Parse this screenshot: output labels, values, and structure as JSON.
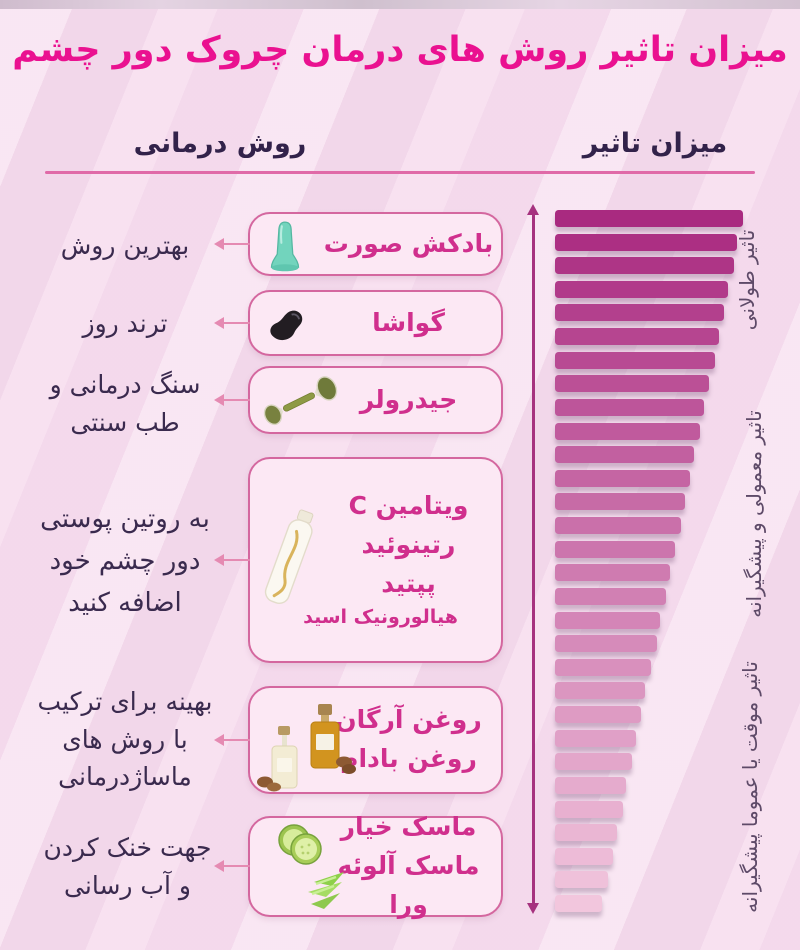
{
  "title": "میزان تاثیر روش های درمان چروک دور چشم",
  "headers": {
    "method": "روش درمانی",
    "effect": "میزان تاثیر"
  },
  "methods": [
    {
      "lines": [
        "بادکش صورت"
      ],
      "note_lines": [
        "بهترین روش"
      ],
      "icon": "face-cupping-icon"
    },
    {
      "lines": [
        "گواشا"
      ],
      "note_lines": [
        "ترند روز"
      ],
      "icon": "gua-sha-stone-icon"
    },
    {
      "lines": [
        "جیدرولر"
      ],
      "note_lines": [
        "سنگ درمانی و",
        "طب سنتی"
      ],
      "icon": "jade-roller-icon"
    },
    {
      "lines": [
        "ویتامین C",
        "رتینوئید",
        "پپتید",
        "هیالورونیک اسید"
      ],
      "note_lines": [
        "به روتین پوستی",
        "دور چشم خود",
        "اضافه کنید"
      ],
      "icon": "cream-tube-icon"
    },
    {
      "lines": [
        "روغن آرگان",
        "روغن بادام"
      ],
      "note_lines": [
        "بهینه برای ترکیب",
        "با روش های",
        "ماساژدرمانی"
      ],
      "icon": "oil-bottles-icon"
    },
    {
      "lines": [
        "ماسک خیار",
        "ماسک آلوئه ورا"
      ],
      "note_lines": [
        "جهت خنک کردن",
        "و آب رسانی"
      ],
      "icon": "cucumber-aloe-icon"
    }
  ],
  "chart_data": {
    "type": "bar",
    "orientation": "horizontal-funnel-descending",
    "title": "میزان تاثیر",
    "bar_count": 30,
    "values": [
      100,
      97,
      95,
      92,
      90,
      87,
      85,
      82,
      79,
      77,
      74,
      72,
      69,
      67,
      64,
      61,
      59,
      56,
      54,
      51,
      48,
      46,
      43,
      41,
      38,
      36,
      33,
      31,
      28,
      25
    ],
    "value_range": [
      0,
      100
    ],
    "color_start": "#a92a80",
    "color_end": "#f2c6dd",
    "axis_style": "vertical-double-arrow",
    "group_labels": [
      {
        "label": "تاثیر طولانی"
      },
      {
        "label": "تاثیر معمولی و پیشگیرانه"
      },
      {
        "label": "تاثیر موقت یا عموما پیشگیرانه"
      }
    ]
  },
  "colors": {
    "title": "#ea1190",
    "header_text": "#32224a",
    "underline": "#e06aa8",
    "box_border": "#d4679f",
    "box_fill": "#fce8f4",
    "box_text": "#d02f8d",
    "note_text": "#3a2a4e",
    "connector_arrow": "#e58ab2",
    "axis_arrow": "#a6327f",
    "group_label_text": "#5e4a68",
    "background": "#f7dcee"
  }
}
